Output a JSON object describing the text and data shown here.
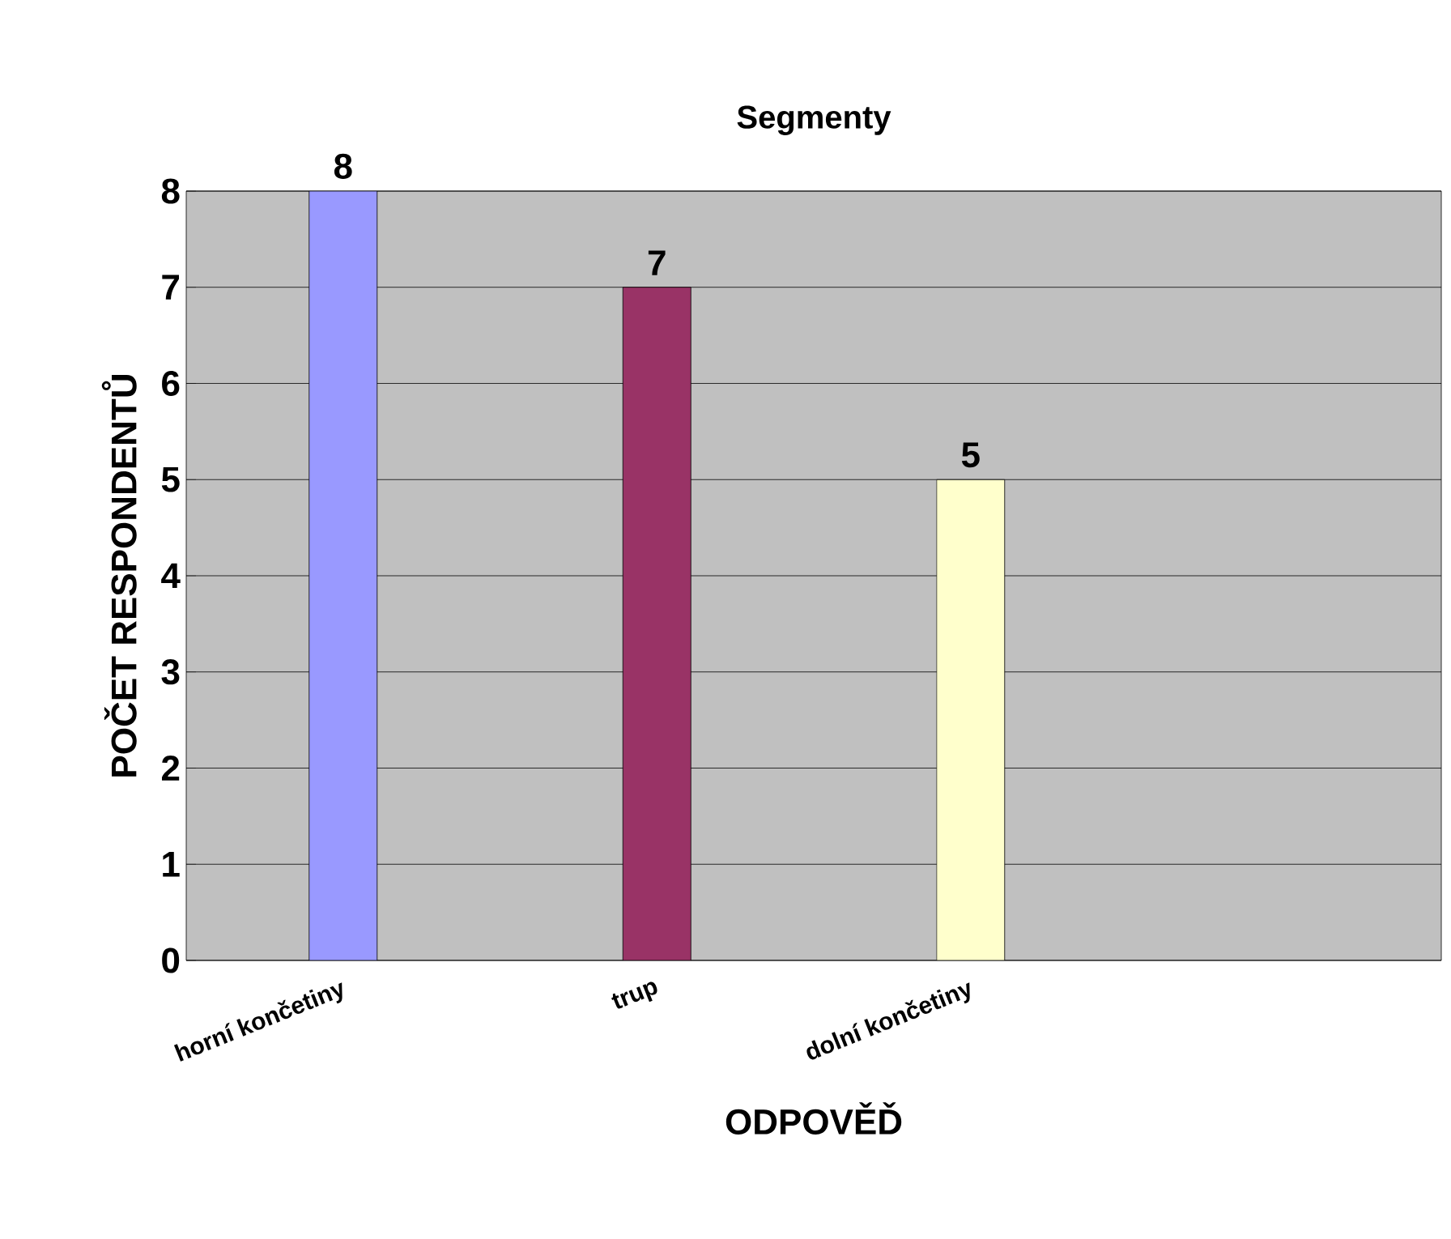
{
  "chart_data": {
    "type": "bar",
    "title": "Segmenty",
    "xlabel": "ODPOVĚĎ",
    "ylabel": "POČET RESPONDENTŮ",
    "categories": [
      "horní končetiny",
      "trup",
      "dolní končetiny",
      null
    ],
    "values": [
      8,
      7,
      5,
      null
    ],
    "colors": [
      "#9999ff",
      "#993366",
      "#ffffcc",
      "#c0c0c0"
    ],
    "ylim": [
      0,
      8
    ],
    "yticks": [
      0,
      1,
      2,
      3,
      4,
      5,
      6,
      7,
      8
    ],
    "grid": "y",
    "data_labels": true
  }
}
